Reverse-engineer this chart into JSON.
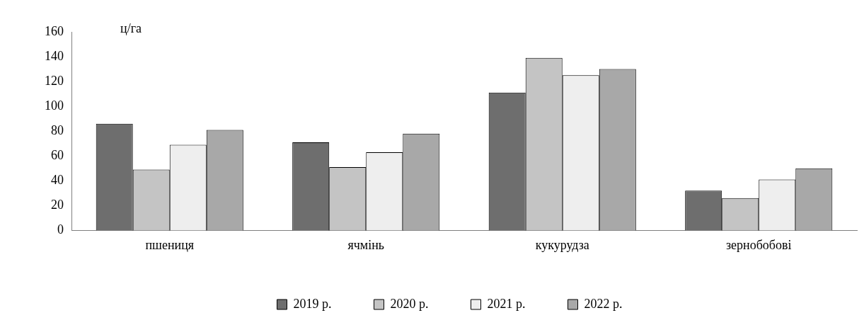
{
  "chart_data": {
    "type": "bar",
    "ylabel": "ц/га",
    "categories": [
      "пшениця",
      "ячмінь",
      "кукурудза",
      "зернобобові"
    ],
    "series": [
      {
        "name": "2019 р.",
        "color": "#6e6e6e",
        "values": [
          86,
          71,
          111,
          32
        ]
      },
      {
        "name": "2020 р.",
        "color": "#c4c4c4",
        "values": [
          49,
          51,
          139,
          26
        ]
      },
      {
        "name": "2021 р.",
        "color": "#eeeeee",
        "values": [
          69,
          63,
          125,
          41
        ]
      },
      {
        "name": "2022 р.",
        "color": "#a8a8a8",
        "values": [
          81,
          78,
          130,
          50
        ]
      }
    ],
    "ylim": [
      0,
      160
    ],
    "yticks": [
      0,
      20,
      40,
      60,
      80,
      100,
      120,
      140,
      160
    ],
    "grid": false,
    "legend": "bottom"
  }
}
